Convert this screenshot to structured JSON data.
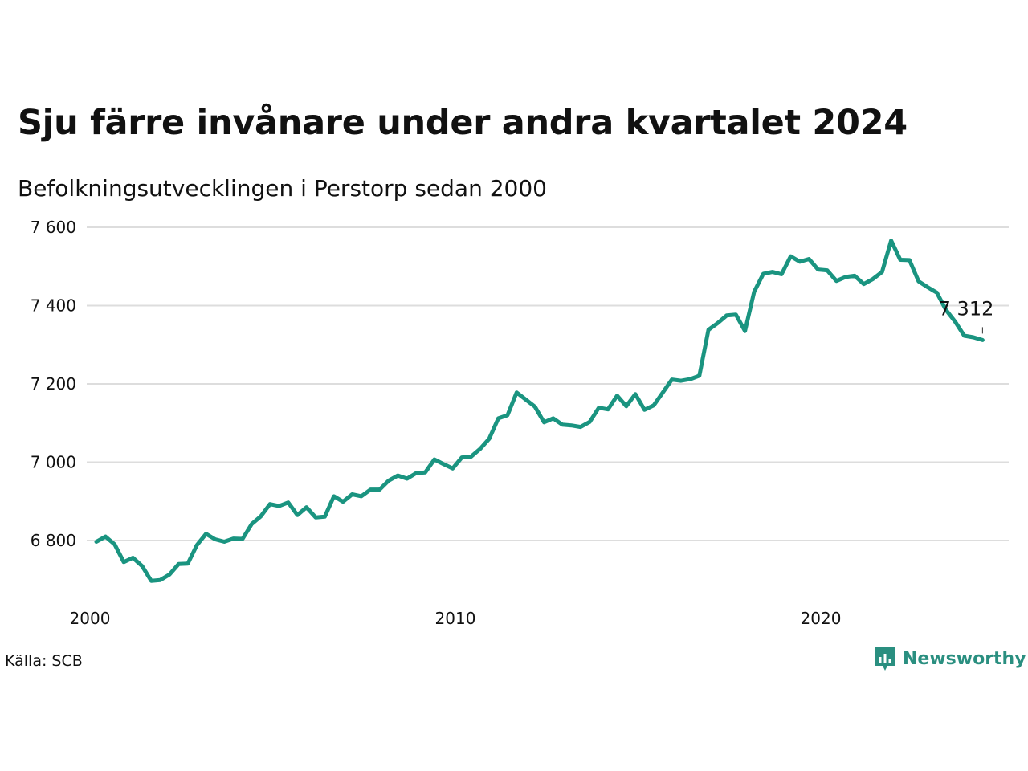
{
  "title": "Sju färre invånare under andra kvartalet 2024",
  "subtitle": "Befolkningsutvecklingen i Perstorp sedan 2000",
  "source": "Källa: SCB",
  "brand": {
    "name": "Newsworthy",
    "icon": "newsworthy-logo-icon"
  },
  "colors": {
    "line": "#1a9480",
    "grid": "#dddddd",
    "brand": "#2a8f80"
  },
  "chart_data": {
    "type": "line",
    "title": "Sju färre invånare under andra kvartalet 2024",
    "subtitle": "Befolkningsutvecklingen i Perstorp sedan 2000",
    "xlabel": "",
    "ylabel": "",
    "xlim": [
      2000,
      2025
    ],
    "ylim": [
      6680,
      7600
    ],
    "grid": true,
    "legend": "none",
    "x_ticks": [
      2000,
      2010,
      2020
    ],
    "x_tick_labels": [
      "2000",
      "2010",
      "2020"
    ],
    "y_ticks": [
      6800,
      7000,
      7200,
      7400,
      7600
    ],
    "y_tick_labels": [
      "6 800",
      "7 000",
      "7 200",
      "7 400",
      "7 600"
    ],
    "end_label": "7 312",
    "series": [
      {
        "x_start": 2000.0,
        "x_step": 0.25,
        "values": [
          6797,
          6810,
          6790,
          6745,
          6756,
          6735,
          6697,
          6699,
          6713,
          6740,
          6741,
          6788,
          6817,
          6803,
          6797,
          6805,
          6804,
          6842,
          6862,
          6893,
          6888,
          6897,
          6865,
          6885,
          6859,
          6861,
          6913,
          6899,
          6918,
          6913,
          6930,
          6930,
          6953,
          6966,
          6958,
          6972,
          6974,
          7007,
          6995,
          6984,
          7012,
          7014,
          7034,
          7060,
          7112,
          7120,
          7178,
          7160,
          7142,
          7102,
          7112,
          7096,
          7094,
          7090,
          7103,
          7139,
          7135,
          7170,
          7143,
          7174,
          7134,
          7145,
          7178,
          7211,
          7208,
          7212,
          7221,
          7338,
          7355,
          7375,
          7377,
          7335,
          7435,
          7481,
          7486,
          7480,
          7526,
          7512,
          7519,
          7492,
          7490,
          7463,
          7473,
          7476,
          7455,
          7468,
          7486,
          7566,
          7517,
          7516,
          7462,
          7447,
          7433,
          7389,
          7359,
          7323,
          7319,
          7312
        ]
      }
    ]
  }
}
